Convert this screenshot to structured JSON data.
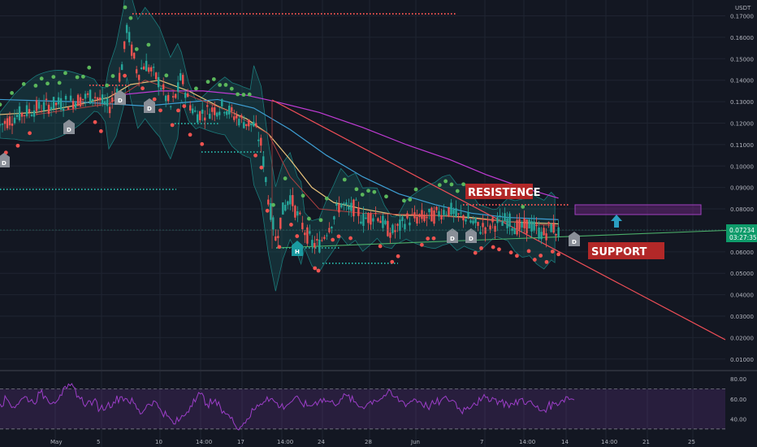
{
  "chart_data": [
    {
      "type": "candlestick",
      "currency_label": "USDT",
      "y_ticks": [
        0.17,
        0.16,
        0.15,
        0.14,
        0.13,
        0.12,
        0.11,
        0.1,
        0.09,
        0.08,
        0.07,
        0.06,
        0.05,
        0.04,
        0.03,
        0.02,
        0.01
      ],
      "y_tick_labels": [
        "0.17000",
        "0.16000",
        "0.15000",
        "0.14000",
        "0.13000",
        "0.12000",
        "0.11000",
        "0.10000",
        "0.09000",
        "0.08000",
        "0.07000",
        "0.06000",
        "0.05000",
        "0.04000",
        "0.03000",
        "0.02000",
        "0.01000"
      ],
      "ylim": [
        0.005,
        0.1755
      ],
      "x_tick_labels": [
        "May",
        "5",
        "10",
        "14:00",
        "17",
        "14:00",
        "24",
        "28",
        "Jun",
        "7",
        "14:00",
        "14",
        "14:00",
        "21",
        "25"
      ],
      "current_price": "0.07234",
      "countdown": "03:27:35",
      "series": [
        {
          "kind": "close_path",
          "points": [
            [
              0,
              0.119
            ],
            [
              0.02,
              0.123
            ],
            [
              0.05,
              0.127
            ],
            [
              0.08,
              0.129
            ],
            [
              0.11,
              0.131
            ],
            [
              0.13,
              0.133
            ],
            [
              0.15,
              0.127
            ],
            [
              0.16,
              0.135
            ],
            [
              0.17,
              0.15
            ],
            [
              0.175,
              0.165
            ],
            [
              0.18,
              0.156
            ],
            [
              0.19,
              0.143
            ],
            [
              0.2,
              0.148
            ],
            [
              0.22,
              0.139
            ],
            [
              0.235,
              0.127
            ],
            [
              0.245,
              0.135
            ],
            [
              0.25,
              0.142
            ],
            [
              0.26,
              0.13
            ],
            [
              0.27,
              0.124
            ],
            [
              0.29,
              0.126
            ],
            [
              0.31,
              0.128
            ],
            [
              0.32,
              0.124
            ],
            [
              0.335,
              0.121
            ],
            [
              0.35,
              0.119
            ],
            [
              0.36,
              0.11
            ],
            [
              0.37,
              0.085
            ],
            [
              0.38,
              0.066
            ],
            [
              0.39,
              0.079
            ],
            [
              0.4,
              0.086
            ],
            [
              0.41,
              0.077
            ],
            [
              0.42,
              0.07
            ],
            [
              0.43,
              0.064
            ],
            [
              0.44,
              0.063
            ],
            [
              0.45,
              0.07
            ],
            [
              0.46,
              0.076
            ],
            [
              0.47,
              0.083
            ],
            [
              0.48,
              0.079
            ],
            [
              0.49,
              0.081
            ],
            [
              0.5,
              0.075
            ],
            [
              0.52,
              0.078
            ],
            [
              0.53,
              0.072
            ],
            [
              0.54,
              0.069
            ],
            [
              0.55,
              0.071
            ],
            [
              0.56,
              0.075
            ],
            [
              0.58,
              0.076
            ],
            [
              0.6,
              0.077
            ],
            [
              0.61,
              0.079
            ],
            [
              0.62,
              0.08
            ],
            [
              0.63,
              0.076
            ],
            [
              0.64,
              0.077
            ],
            [
              0.65,
              0.074
            ],
            [
              0.66,
              0.071
            ],
            [
              0.68,
              0.073
            ],
            [
              0.7,
              0.075
            ],
            [
              0.71,
              0.072
            ],
            [
              0.72,
              0.071
            ],
            [
              0.73,
              0.073
            ],
            [
              0.74,
              0.07
            ],
            [
              0.75,
              0.068
            ],
            [
              0.76,
              0.072
            ],
            [
              0.77,
              0.069
            ]
          ]
        },
        {
          "kind": "ma_yellow",
          "points": [
            [
              0,
              0.124
            ],
            [
              0.05,
              0.125
            ],
            [
              0.1,
              0.128
            ],
            [
              0.15,
              0.132
            ],
            [
              0.18,
              0.138
            ],
            [
              0.22,
              0.14
            ],
            [
              0.26,
              0.135
            ],
            [
              0.3,
              0.128
            ],
            [
              0.34,
              0.122
            ],
            [
              0.37,
              0.115
            ],
            [
              0.4,
              0.103
            ],
            [
              0.43,
              0.09
            ],
            [
              0.46,
              0.083
            ],
            [
              0.5,
              0.08
            ],
            [
              0.55,
              0.077
            ],
            [
              0.6,
              0.077
            ],
            [
              0.65,
              0.076
            ],
            [
              0.7,
              0.074
            ],
            [
              0.77,
              0.073
            ]
          ]
        },
        {
          "kind": "ma_blue",
          "points": [
            [
              0,
              0.131
            ],
            [
              0.1,
              0.13
            ],
            [
              0.2,
              0.128
            ],
            [
              0.3,
              0.131
            ],
            [
              0.35,
              0.127
            ],
            [
              0.4,
              0.117
            ],
            [
              0.45,
              0.105
            ],
            [
              0.5,
              0.095
            ],
            [
              0.55,
              0.087
            ],
            [
              0.6,
              0.082
            ],
            [
              0.65,
              0.078
            ],
            [
              0.7,
              0.076
            ],
            [
              0.77,
              0.075
            ]
          ]
        },
        {
          "kind": "ma_purple",
          "points": [
            [
              0.16,
              0.133
            ],
            [
              0.22,
              0.135
            ],
            [
              0.28,
              0.135
            ],
            [
              0.34,
              0.133
            ],
            [
              0.38,
              0.13
            ],
            [
              0.44,
              0.125
            ],
            [
              0.5,
              0.118
            ],
            [
              0.56,
              0.11
            ],
            [
              0.62,
              0.103
            ],
            [
              0.67,
              0.096
            ],
            [
              0.72,
              0.09
            ],
            [
              0.77,
              0.085
            ]
          ]
        }
      ],
      "annotations": {
        "resistance_label": "RESISTENCE",
        "support_label": "SUPPORT",
        "badge_d": "D",
        "badge_h": "H"
      },
      "colors": {
        "up": "#26a69a",
        "down": "#ef5350",
        "bg": "#131722",
        "grid": "#1f2431",
        "bb": "#1b7a7a",
        "ma_yellow": "#e8c27a",
        "ma_blue": "#3e9fd4",
        "ma_purple": "#c23bd6",
        "trend_red": "#f04e57",
        "trend_green": "#3ca46e",
        "label_bg": "#b22828",
        "arrow": "#2b9fc1",
        "price_tag": "#0e9b6a"
      }
    },
    {
      "type": "line",
      "name_hint": "rsi",
      "y_ticks": [
        80,
        60,
        40
      ],
      "y_tick_labels": [
        "80.00",
        "60.00",
        "40.00"
      ],
      "ylim": [
        25,
        85
      ],
      "levels": [
        70,
        30
      ],
      "values_hint": [
        55,
        60,
        52,
        58,
        62,
        56,
        66,
        61,
        57,
        64,
        70,
        72,
        60,
        55,
        58,
        50,
        53,
        57,
        62,
        60,
        56,
        45,
        54,
        58,
        50,
        43,
        35,
        40,
        47,
        60,
        65,
        55,
        57,
        52,
        45,
        36,
        32,
        40,
        49,
        55,
        62,
        58,
        52,
        54,
        60,
        57,
        53,
        55,
        60,
        58,
        55,
        60,
        63,
        57,
        52,
        55,
        59,
        60,
        66,
        62,
        58,
        55,
        60,
        57,
        52,
        55,
        58,
        60,
        58,
        48,
        52,
        56,
        58,
        62,
        60,
        57,
        55,
        54,
        60,
        57,
        53,
        48,
        52,
        55,
        58,
        62,
        59
      ]
    }
  ]
}
